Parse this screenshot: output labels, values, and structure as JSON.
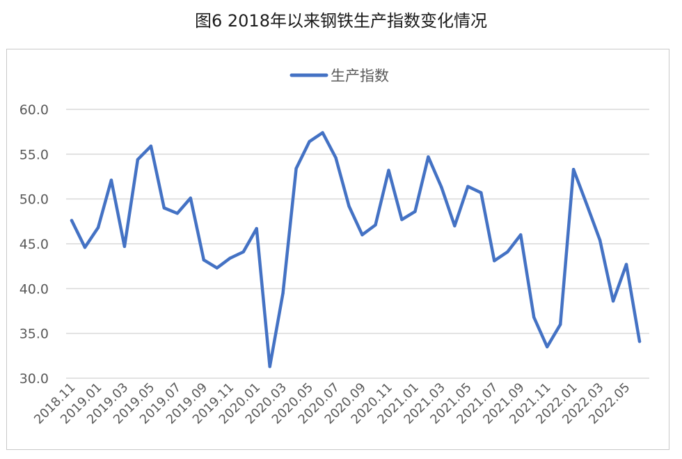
{
  "figure_title": "图6  2018年以来钢铁生产指数变化情况",
  "chart_data": {
    "type": "line",
    "title": "图6  2018年以来钢铁生产指数变化情况",
    "xlabel": "",
    "ylabel": "",
    "ylim": [
      30.0,
      60.0
    ],
    "yticks": [
      "30.0",
      "35.0",
      "40.0",
      "45.0",
      "50.0",
      "55.0",
      "60.0"
    ],
    "grid": "horizontal",
    "legend_position": "top-center",
    "categories": [
      "2018.11",
      "2018.12",
      "2019.01",
      "2019.02",
      "2019.03",
      "2019.04",
      "2019.05",
      "2019.06",
      "2019.07",
      "2019.08",
      "2019.09",
      "2019.10",
      "2019.11",
      "2019.12",
      "2020.01",
      "2020.02",
      "2020.03",
      "2020.04",
      "2020.05",
      "2020.06",
      "2020.07",
      "2020.08",
      "2020.09",
      "2020.10",
      "2020.11",
      "2020.12",
      "2021.01",
      "2021.02",
      "2021.03",
      "2021.04",
      "2021.05",
      "2021.06",
      "2021.07",
      "2021.08",
      "2021.09",
      "2021.10",
      "2021.11",
      "2021.12",
      "2022.01",
      "2022.02",
      "2022.03",
      "2022.04",
      "2022.05",
      "2022.06"
    ],
    "shown_tick_labels": [
      "2018.11",
      "2019.01",
      "2019.03",
      "2019.05",
      "2019.07",
      "2019.09",
      "2019.11",
      "2020.01",
      "2020.03",
      "2020.05",
      "2020.07",
      "2020.09",
      "2020.11",
      "2021.01",
      "2021.03",
      "2021.05",
      "2021.07",
      "2021.09",
      "2021.11",
      "2022.01",
      "2022.03",
      "2022.05"
    ],
    "series": [
      {
        "name": "生产指数",
        "color": "#4472c4",
        "values": [
          47.6,
          44.6,
          46.8,
          52.1,
          44.7,
          54.4,
          55.9,
          49.0,
          48.4,
          50.1,
          43.2,
          42.3,
          43.4,
          44.1,
          46.7,
          31.3,
          39.5,
          53.4,
          56.4,
          57.4,
          54.6,
          49.2,
          46.0,
          47.1,
          53.2,
          47.7,
          48.6,
          54.7,
          51.3,
          47.0,
          51.4,
          50.7,
          43.1,
          44.1,
          46.0,
          36.8,
          33.5,
          36.0,
          53.3,
          49.4,
          45.4,
          38.6,
          42.7,
          34.1
        ]
      }
    ]
  }
}
